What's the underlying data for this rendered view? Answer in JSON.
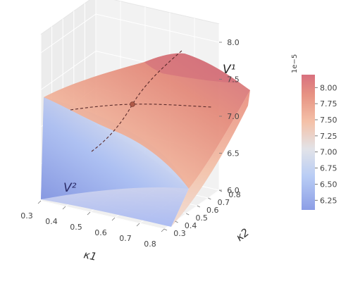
{
  "chart_data": {
    "type": "surface-3d",
    "title": "",
    "xlabel": "κ1",
    "ylabel": "κ2",
    "zlabel": "",
    "x_ticks": [
      "0.3",
      "0.4",
      "0.5",
      "0.6",
      "0.7",
      "0.8"
    ],
    "y_ticks": [
      "0.3",
      "0.4",
      "0.5",
      "0.6",
      "0.7",
      "0.8"
    ],
    "z_ticks": [
      "6.0",
      "6.5",
      "7.0",
      "7.5",
      "8.0"
    ],
    "xlim": [
      0.3,
      0.8
    ],
    "ylim": [
      0.3,
      0.8
    ],
    "zlim": [
      6.0,
      8.0
    ],
    "colormap": "coolwarm",
    "colorbar": {
      "offset_text": "1e−5",
      "ticks": [
        "6.25",
        "6.50",
        "6.75",
        "7.00",
        "7.25",
        "7.50",
        "7.75",
        "8.00"
      ],
      "range": [
        6.1,
        8.2
      ]
    },
    "surfaces": [
      {
        "name": "V1",
        "label": "V¹",
        "description_peak": [
          0.8,
          0.8,
          8.1
        ]
      },
      {
        "name": "V2",
        "label": "V²",
        "description_low": [
          0.3,
          0.3,
          6.1
        ]
      }
    ],
    "equilibrium_point": {
      "x": 0.55,
      "y": 0.55,
      "z": 7.55
    },
    "surface_labels": {
      "v1": "V¹",
      "v2": "V²"
    },
    "grid": true
  }
}
